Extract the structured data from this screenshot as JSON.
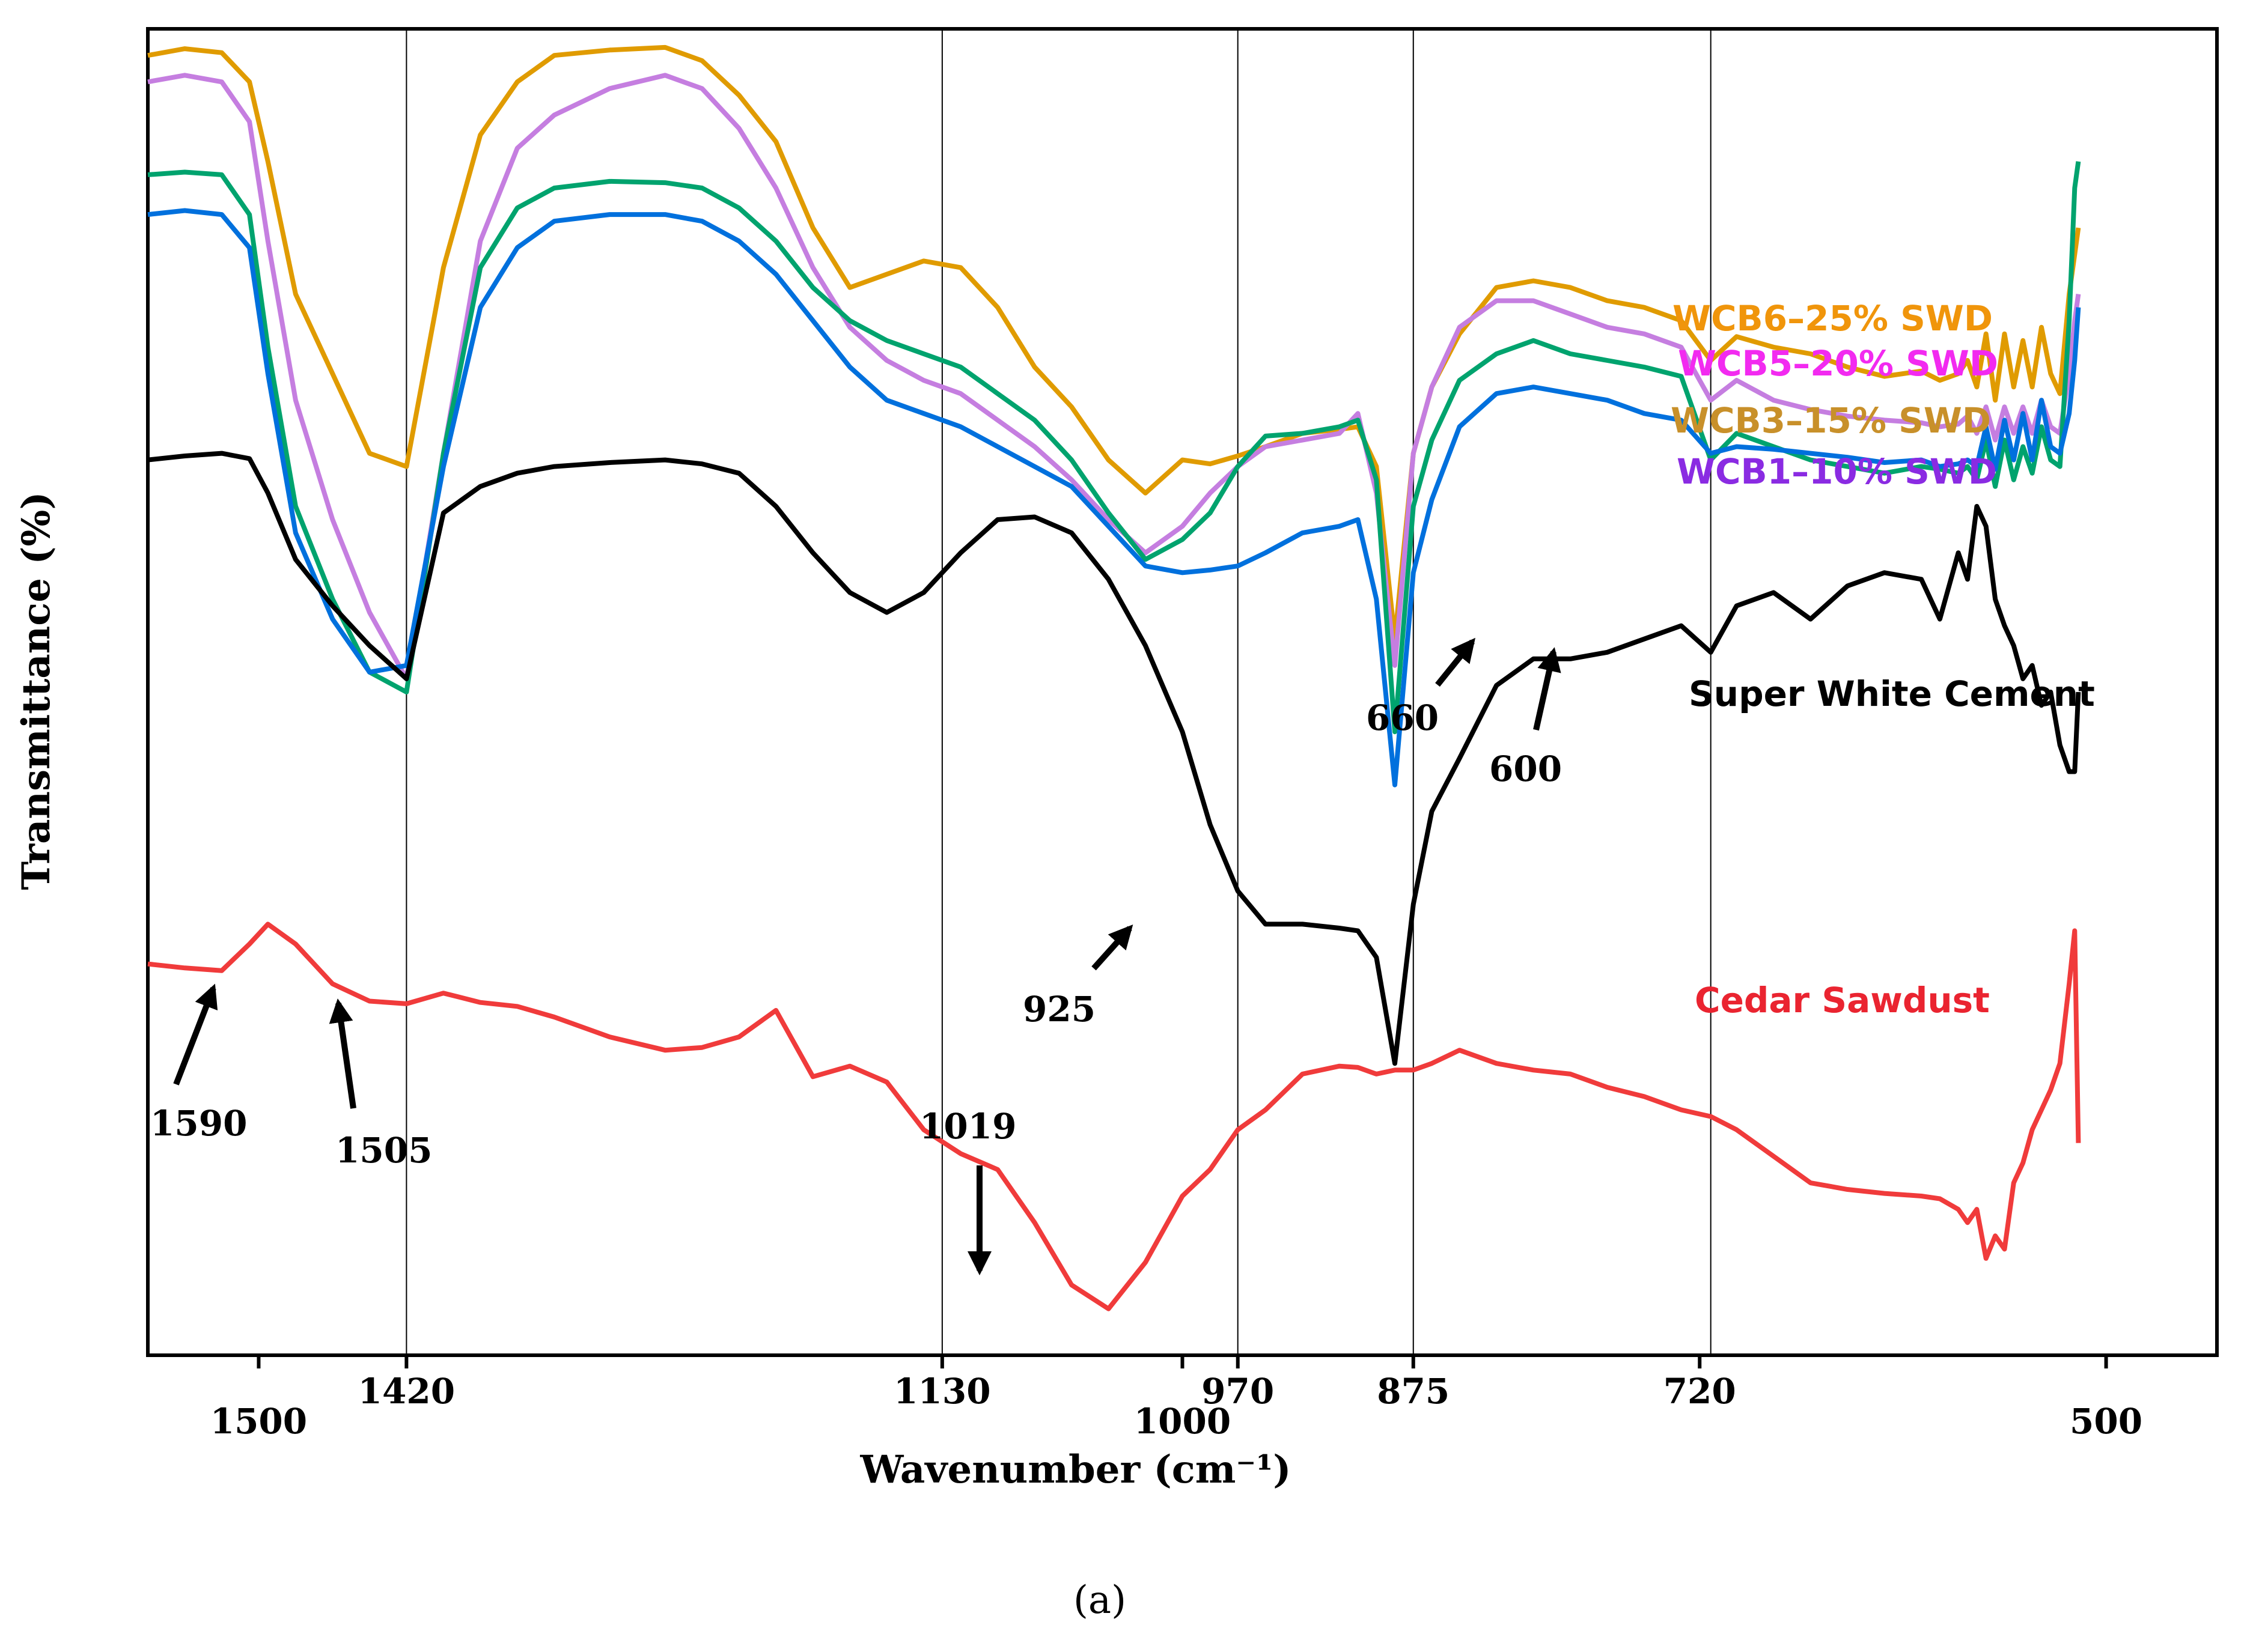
{
  "chart_data": {
    "type": "line",
    "title": "",
    "caption": "(a)",
    "xlabel": "Wavenumber  (cm⁻¹)",
    "ylabel": "Transmittance (%)",
    "xlim": [
      1560,
      440
    ],
    "x_reversed": true,
    "ylim": [
      0,
      100
    ],
    "y_ticks_shown": false,
    "x_tick_labels": [
      {
        "value": 1500,
        "label": "1500"
      },
      {
        "value": 1420,
        "label": "1420"
      },
      {
        "value": 1130,
        "label": "1130"
      },
      {
        "value": 1000,
        "label": "1000"
      },
      {
        "value": 970,
        "label": "970"
      },
      {
        "value": 875,
        "label": "875"
      },
      {
        "value": 720,
        "label": "720"
      },
      {
        "value": 500,
        "label": "500"
      }
    ],
    "x_reference_lines": [
      1420,
      1130,
      970,
      875,
      714
    ],
    "series": [
      {
        "name": "WCB6–25% SWD",
        "color": "#e09b00",
        "x": [
          1560,
          1540,
          1520,
          1505,
          1495,
          1480,
          1460,
          1440,
          1420,
          1400,
          1380,
          1360,
          1340,
          1310,
          1280,
          1260,
          1240,
          1220,
          1200,
          1180,
          1160,
          1140,
          1120,
          1100,
          1080,
          1060,
          1040,
          1020,
          1000,
          985,
          970,
          955,
          935,
          915,
          905,
          895,
          885,
          875,
          865,
          850,
          830,
          810,
          790,
          770,
          750,
          730,
          714,
          700,
          680,
          660,
          640,
          620,
          600,
          590,
          580,
          575,
          570,
          565,
          560,
          555,
          550,
          545,
          540,
          535,
          530,
          525,
          520,
          517,
          515
        ],
        "y": [
          98,
          98.5,
          98.2,
          96,
          90,
          80,
          74,
          68,
          67,
          82,
          92,
          96,
          98,
          98.4,
          98.6,
          97.6,
          95,
          91.5,
          85,
          80.5,
          81.5,
          82.5,
          82,
          79,
          74.5,
          71.5,
          67.5,
          65,
          67.5,
          67.2,
          67.8,
          68.5,
          69.5,
          69.8,
          70,
          67,
          54,
          68,
          73,
          77,
          80.5,
          81,
          80.5,
          79.5,
          79,
          78,
          75,
          76.8,
          76,
          75.5,
          74.5,
          73.8,
          74.2,
          73.5,
          74,
          75,
          73,
          77,
          72,
          77,
          73,
          76.5,
          73,
          77.5,
          74,
          72.5,
          80,
          83,
          85
        ]
      },
      {
        "name": "WCB5–20% SWD",
        "color": "#c57ee0",
        "x": [
          1560,
          1540,
          1520,
          1505,
          1495,
          1480,
          1460,
          1440,
          1420,
          1400,
          1380,
          1360,
          1340,
          1310,
          1280,
          1260,
          1240,
          1220,
          1200,
          1180,
          1160,
          1140,
          1120,
          1100,
          1080,
          1060,
          1040,
          1020,
          1000,
          985,
          970,
          955,
          935,
          915,
          905,
          895,
          885,
          875,
          865,
          850,
          830,
          810,
          790,
          770,
          750,
          730,
          714,
          700,
          680,
          660,
          640,
          620,
          600,
          590,
          580,
          575,
          570,
          565,
          560,
          555,
          550,
          545,
          540,
          535,
          530,
          525,
          520,
          517,
          515
        ],
        "y": [
          96,
          96.5,
          96,
          93,
          84,
          72,
          63,
          56,
          51,
          68,
          84,
          91,
          93.5,
          95.5,
          96.5,
          95.5,
          92.5,
          88,
          82,
          77.5,
          75,
          73.5,
          72.5,
          70.5,
          68.5,
          66,
          63,
          60.5,
          62.5,
          65,
          67,
          68.5,
          69,
          69.5,
          71,
          65,
          52,
          68,
          73,
          77.5,
          79.5,
          79.5,
          78.5,
          77.5,
          77,
          76,
          72,
          73.5,
          72,
          71.3,
          70.8,
          70.5,
          70.3,
          70,
          70.2,
          70.8,
          69.5,
          71.5,
          69,
          71.5,
          69.5,
          71.5,
          69.5,
          72,
          70,
          69.5,
          74,
          78,
          80
        ]
      },
      {
        "name": "WCB3–15%  SWD",
        "color": "#00a36e",
        "x": [
          1560,
          1540,
          1520,
          1505,
          1495,
          1480,
          1460,
          1440,
          1420,
          1400,
          1380,
          1360,
          1340,
          1310,
          1280,
          1260,
          1240,
          1220,
          1200,
          1180,
          1160,
          1140,
          1120,
          1100,
          1080,
          1060,
          1040,
          1020,
          1000,
          985,
          970,
          955,
          935,
          915,
          905,
          895,
          885,
          875,
          865,
          850,
          830,
          810,
          790,
          770,
          750,
          730,
          714,
          700,
          680,
          660,
          640,
          620,
          600,
          590,
          580,
          575,
          570,
          565,
          560,
          555,
          550,
          545,
          540,
          535,
          530,
          525,
          520,
          517,
          515
        ],
        "y": [
          89,
          89.2,
          89,
          86,
          76,
          64,
          57,
          51.5,
          50,
          68,
          82,
          86.5,
          88,
          88.5,
          88.4,
          88,
          86.5,
          84,
          80.5,
          78,
          76.5,
          75.5,
          74.5,
          72.5,
          70.5,
          67.5,
          63.5,
          60,
          61.5,
          63.5,
          67,
          69.3,
          69.5,
          70,
          70.5,
          66,
          47,
          64,
          69,
          73.5,
          75.5,
          76.5,
          75.5,
          75,
          74.5,
          73.8,
          67.5,
          69.5,
          68.5,
          67.5,
          67,
          66.5,
          67,
          66.8,
          66.5,
          67,
          66,
          69,
          65.5,
          69,
          66,
          68.5,
          66.5,
          70,
          67.5,
          67,
          78,
          88,
          90
        ]
      },
      {
        "name": "WCB1–10% SWD",
        "color": "#0070dd",
        "x": [
          1560,
          1540,
          1520,
          1505,
          1495,
          1480,
          1460,
          1440,
          1420,
          1400,
          1380,
          1360,
          1340,
          1310,
          1280,
          1260,
          1240,
          1220,
          1200,
          1180,
          1160,
          1140,
          1120,
          1100,
          1080,
          1060,
          1040,
          1020,
          1000,
          985,
          970,
          955,
          935,
          915,
          905,
          895,
          885,
          875,
          865,
          850,
          830,
          810,
          790,
          770,
          750,
          730,
          714,
          700,
          680,
          660,
          640,
          620,
          600,
          590,
          580,
          575,
          570,
          565,
          560,
          555,
          550,
          545,
          540,
          535,
          530,
          525,
          520,
          517,
          515
        ],
        "y": [
          86,
          86.3,
          86,
          83.5,
          74,
          62,
          55.5,
          51.5,
          52,
          67,
          79,
          83.5,
          85.5,
          86,
          86,
          85.5,
          84,
          81.5,
          78,
          74.5,
          72,
          71,
          70,
          68.5,
          67,
          65.5,
          62.5,
          59.5,
          59,
          59.2,
          59.5,
          60.5,
          62,
          62.5,
          63,
          57,
          43,
          59,
          64.5,
          70,
          72.5,
          73,
          72.5,
          72,
          71,
          70.5,
          68,
          68.5,
          68.3,
          68,
          67.7,
          67.3,
          67.5,
          67,
          67.2,
          67.5,
          67,
          70,
          66.8,
          70.5,
          67.5,
          71,
          67.5,
          72,
          68.5,
          68,
          71,
          75,
          79
        ]
      },
      {
        "name": "Super White Cement",
        "color": "#000000",
        "x": [
          1560,
          1540,
          1520,
          1505,
          1495,
          1480,
          1460,
          1440,
          1420,
          1400,
          1380,
          1360,
          1340,
          1310,
          1280,
          1260,
          1240,
          1220,
          1200,
          1180,
          1160,
          1140,
          1120,
          1100,
          1080,
          1060,
          1040,
          1020,
          1000,
          985,
          970,
          955,
          935,
          915,
          905,
          895,
          885,
          875,
          865,
          850,
          830,
          810,
          790,
          770,
          750,
          730,
          714,
          700,
          680,
          660,
          640,
          620,
          600,
          590,
          580,
          575,
          570,
          565,
          560,
          555,
          550,
          545,
          540,
          535,
          530,
          525,
          520,
          517,
          515
        ],
        "y": [
          67.5,
          67.8,
          68,
          67.6,
          65,
          60,
          56.5,
          53.5,
          51,
          63.5,
          65.5,
          66.5,
          67,
          67.3,
          67.5,
          67.2,
          66.5,
          64,
          60.5,
          57.5,
          56,
          57.5,
          60.5,
          63,
          63.2,
          62,
          58.5,
          53.5,
          47,
          40,
          35,
          32.5,
          32.5,
          32.2,
          32,
          30,
          22,
          34,
          41,
          45,
          50.5,
          52.5,
          52.5,
          53,
          54,
          55,
          53,
          56.5,
          57.5,
          55.5,
          58,
          59,
          58.5,
          55.5,
          60.5,
          58.5,
          64,
          62.5,
          57,
          55,
          53.5,
          51,
          52,
          49,
          50,
          46,
          44,
          44,
          50
        ]
      },
      {
        "name": "Cedar Sawdust",
        "color": "#f03b3b",
        "x": [
          1560,
          1540,
          1520,
          1505,
          1495,
          1480,
          1460,
          1440,
          1420,
          1400,
          1380,
          1360,
          1340,
          1310,
          1280,
          1260,
          1240,
          1220,
          1200,
          1180,
          1160,
          1140,
          1120,
          1100,
          1080,
          1060,
          1040,
          1020,
          1000,
          985,
          970,
          955,
          935,
          915,
          905,
          895,
          885,
          875,
          865,
          850,
          830,
          810,
          790,
          770,
          750,
          730,
          714,
          700,
          680,
          660,
          640,
          620,
          600,
          590,
          580,
          575,
          570,
          565,
          560,
          555,
          550,
          545,
          540,
          535,
          530,
          525,
          520,
          517,
          515
        ],
        "y": [
          29.5,
          29.2,
          29,
          31,
          32.5,
          31,
          28,
          26.7,
          26.5,
          27.3,
          26.6,
          26.3,
          25.5,
          24,
          23,
          23.2,
          24,
          26,
          21,
          21.8,
          20.6,
          17,
          15.2,
          14,
          10,
          5.3,
          3.5,
          7,
          12,
          14,
          17,
          18.5,
          21.2,
          21.8,
          21.7,
          21.2,
          21.5,
          21.5,
          22,
          23,
          22,
          21.5,
          21.2,
          20.2,
          19.5,
          18.5,
          18,
          17,
          15,
          13,
          12.5,
          12.2,
          12,
          11.8,
          11,
          10,
          11,
          7.3,
          9,
          8,
          13,
          14.5,
          17,
          18.5,
          20,
          22,
          28,
          32,
          16
        ]
      }
    ],
    "legend_labels": [
      {
        "text": "WCB6–25% SWD",
        "color": "#f0950b"
      },
      {
        "text": "WCB5–20% SWD",
        "color": "#f22af0"
      },
      {
        "text": "WCB3–15%  SWD",
        "color": "#c8902a"
      },
      {
        "text": "WCB1–10% SWD",
        "color": "#8a2be2"
      },
      {
        "text": "Super White Cement",
        "color": "#000000"
      },
      {
        "text": "Cedar Sawdust",
        "color": "#ea2430"
      }
    ],
    "annotations": [
      {
        "label": "1590"
      },
      {
        "label": "1505"
      },
      {
        "label": "1019"
      },
      {
        "label": "925"
      },
      {
        "label": "660"
      },
      {
        "label": "600"
      }
    ]
  }
}
